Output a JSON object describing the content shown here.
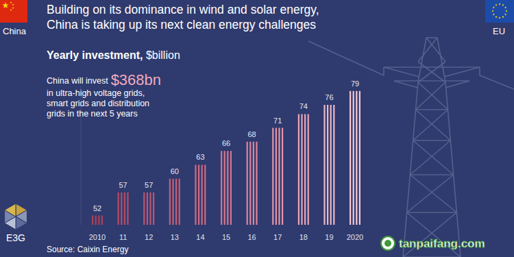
{
  "chart_data": {
    "type": "bar",
    "title": "Building on its dominance in wind and solar energy,\nChina is taking up its next clean energy challenges",
    "subtitle": "Yearly investment, $billion",
    "flag_labels": [
      "China",
      "EU"
    ],
    "annotation": {
      "lead": "China will invest",
      "highlight": "$368bn",
      "body": "in ultra-high voltage grids,\nsmart grids and distribution\ngrids in the next 5 years"
    },
    "categories": [
      "2010",
      "11",
      "12",
      "13",
      "14",
      "15",
      "16",
      "17",
      "18",
      "19",
      "2020"
    ],
    "values": [
      52,
      57,
      57,
      60,
      63,
      66,
      68,
      71,
      74,
      76,
      79
    ],
    "colors": [
      "#a8435a",
      "#b44e66",
      "#bd5670",
      "#c65f79",
      "#cf6a83",
      "#d6778e",
      "#dd869b",
      "#e395a8",
      "#e9a6b6",
      "#eeb7c4",
      "#f3c8d2"
    ],
    "ylim": [
      50,
      80
    ],
    "data_labels": true,
    "tick_labels": "x",
    "grid": false,
    "logo_text": "E3G",
    "source": "Source: Caixin Energy",
    "watermark": "tanpaifang.com"
  }
}
